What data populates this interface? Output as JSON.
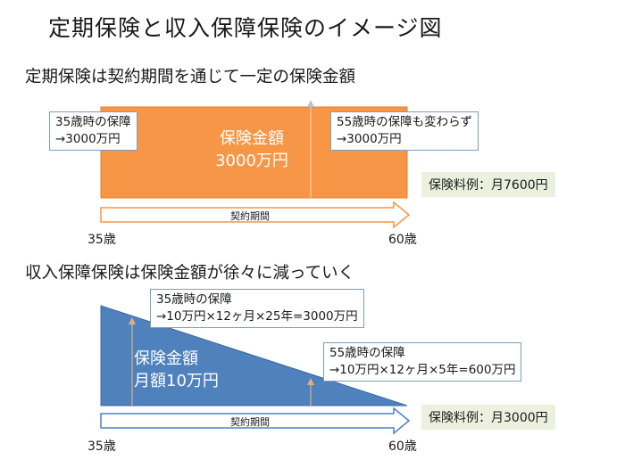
{
  "title": "定期保険と収入保障保険のイメージ図",
  "term": {
    "heading": "定期保険は契約期間を通じて一定の保険金額",
    "box_line1": "保険金額",
    "box_line2": "3000万円",
    "callout_left_line1": "35歳時の保障",
    "callout_left_line2": "→3000万円",
    "callout_right_line1": "55歳時の保障も変わらず",
    "callout_right_line2": "→3000万円",
    "premium": "保険料例：月7600円",
    "period_label": "契約期間",
    "age_start": "35歳",
    "age_end": "60歳",
    "box_color": "#f79646"
  },
  "income": {
    "heading": "収入保障保険は保険金額が徐々に減っていく",
    "shape_line1": "保険金額",
    "shape_line2": "月額10万円",
    "callout_top_line1": "35歳時の保障",
    "callout_top_line2": "→10万円×12ヶ月×25年=3000万円",
    "callout_right_line1": "55歳時の保障",
    "callout_right_line2": "→10万円×12ヶ月×5年=600万円",
    "premium": "保険料例：月3000円",
    "period_label": "契約期間",
    "age_start": "35歳",
    "age_end": "60歳",
    "shape_color": "#4f81bd"
  }
}
